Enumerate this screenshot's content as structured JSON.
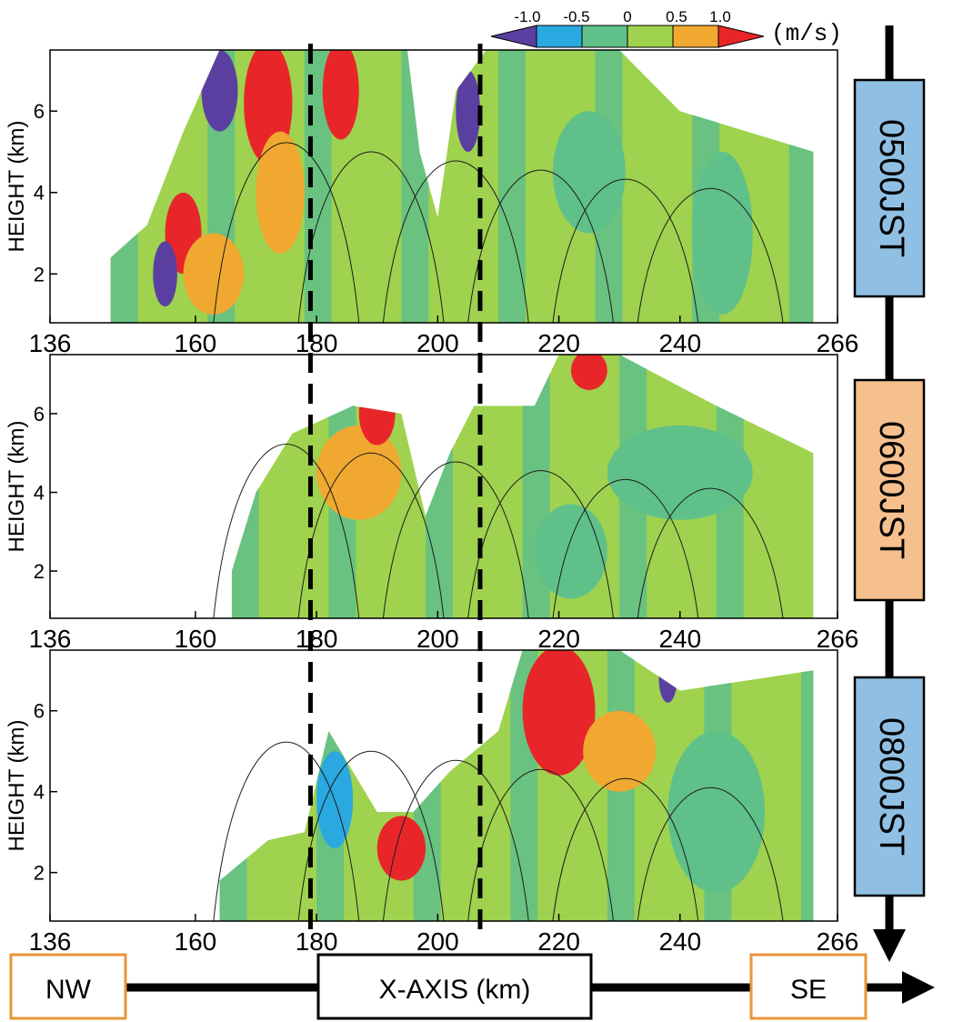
{
  "colorbar": {
    "tick_labels": [
      "-1.0",
      "-0.5",
      "0",
      "0.5",
      "1.0"
    ],
    "unit": "(m/s)",
    "colors": [
      "#5b3fa0",
      "#2aa8e0",
      "#5fc08a",
      "#9fd24e",
      "#f0a830",
      "#e8262a"
    ]
  },
  "panels": [
    {
      "time_label": "0500JST",
      "label_fill": "#8fc0e4",
      "y_axis_label": "HEIGHT (km)"
    },
    {
      "time_label": "0600JST",
      "label_fill": "#f5c08e",
      "y_axis_label": "HEIGHT (km)"
    },
    {
      "time_label": "0800JST",
      "label_fill": "#8fc0e4",
      "y_axis_label": "HEIGHT (km)"
    }
  ],
  "bottom_axis": {
    "left_label": "NW",
    "center_label": "X-AXIS (km)",
    "right_label": "SE"
  },
  "chart_data": {
    "type": "heatmap",
    "x_ticks": [
      136,
      160,
      180,
      200,
      220,
      240,
      266
    ],
    "y_ticks": [
      2,
      4,
      6
    ],
    "xlim": [
      136,
      266
    ],
    "ylim": [
      0.8,
      7.5
    ],
    "xlabel": "X-AXIS (km)",
    "ylabel": "HEIGHT (km)",
    "dashed_lines_x": [
      179,
      207
    ],
    "value_range": [
      -1.0,
      1.0
    ],
    "value_unit": "m/s",
    "panels": [
      {
        "time": "0500JST",
        "coverage_x": [
          146,
          262
        ],
        "echo_tops": [
          [
            146,
            2.4
          ],
          [
            152,
            3.2
          ],
          [
            158,
            5.5
          ],
          [
            164,
            7.5
          ],
          [
            195,
            7.5
          ],
          [
            197,
            5.0
          ],
          [
            200,
            3.4
          ],
          [
            203,
            6.5
          ],
          [
            208,
            7.5
          ],
          [
            230,
            7.5
          ],
          [
            240,
            6.0
          ],
          [
            262,
            5.0
          ]
        ],
        "patches": [
          {
            "x": 172,
            "z": 6.2,
            "rx": 4,
            "rz": 1.5,
            "value": 1.0
          },
          {
            "x": 184,
            "z": 6.5,
            "rx": 3,
            "rz": 1.2,
            "value": 1.0
          },
          {
            "x": 158,
            "z": 3.0,
            "rx": 3,
            "rz": 1.0,
            "value": 1.0
          },
          {
            "x": 174,
            "z": 4.0,
            "rx": 4,
            "rz": 1.5,
            "value": 0.7
          },
          {
            "x": 163,
            "z": 2.0,
            "rx": 5,
            "rz": 1.0,
            "value": 0.7
          },
          {
            "x": 155,
            "z": 2.0,
            "rx": 2,
            "rz": 0.8,
            "value": -1.0
          },
          {
            "x": 164,
            "z": 6.5,
            "rx": 3,
            "rz": 1.0,
            "value": -1.0
          },
          {
            "x": 205,
            "z": 6.0,
            "rx": 2,
            "rz": 1.0,
            "value": -1.0
          },
          {
            "x": 225,
            "z": 4.5,
            "rx": 6,
            "rz": 1.5,
            "value": -0.2
          },
          {
            "x": 247,
            "z": 3.0,
            "rx": 5,
            "rz": 2.0,
            "value": -0.2
          }
        ]
      },
      {
        "time": "0600JST",
        "coverage_x": [
          166,
          262
        ],
        "echo_tops": [
          [
            166,
            2.0
          ],
          [
            170,
            4.0
          ],
          [
            176,
            5.5
          ],
          [
            186,
            6.2
          ],
          [
            194,
            6.0
          ],
          [
            198,
            3.4
          ],
          [
            202,
            5.0
          ],
          [
            206,
            6.2
          ],
          [
            216,
            6.2
          ],
          [
            220,
            7.5
          ],
          [
            230,
            7.5
          ],
          [
            246,
            6.2
          ],
          [
            262,
            5.0
          ]
        ],
        "patches": [
          {
            "x": 187,
            "z": 4.5,
            "rx": 7,
            "rz": 1.2,
            "value": 0.7
          },
          {
            "x": 190,
            "z": 6.0,
            "rx": 3,
            "rz": 0.8,
            "value": 1.0
          },
          {
            "x": 225,
            "z": 7.1,
            "rx": 3,
            "rz": 0.5,
            "value": 1.0
          },
          {
            "x": 240,
            "z": 4.5,
            "rx": 12,
            "rz": 1.2,
            "value": -0.2
          },
          {
            "x": 222,
            "z": 2.5,
            "rx": 6,
            "rz": 1.2,
            "value": -0.2
          }
        ]
      },
      {
        "time": "0800JST",
        "coverage_x": [
          164,
          262
        ],
        "echo_tops": [
          [
            164,
            1.8
          ],
          [
            172,
            2.8
          ],
          [
            178,
            3.0
          ],
          [
            182,
            5.5
          ],
          [
            186,
            4.5
          ],
          [
            190,
            3.5
          ],
          [
            196,
            3.5
          ],
          [
            202,
            4.5
          ],
          [
            210,
            5.5
          ],
          [
            214,
            7.5
          ],
          [
            230,
            7.5
          ],
          [
            240,
            6.5
          ],
          [
            262,
            7.0
          ]
        ],
        "patches": [
          {
            "x": 194,
            "z": 2.6,
            "rx": 4,
            "rz": 0.8,
            "value": 1.0
          },
          {
            "x": 220,
            "z": 6.0,
            "rx": 6,
            "rz": 1.6,
            "value": 1.0
          },
          {
            "x": 183,
            "z": 3.8,
            "rx": 3,
            "rz": 1.2,
            "value": -0.6
          },
          {
            "x": 238,
            "z": 6.8,
            "rx": 1.5,
            "rz": 0.6,
            "value": -1.0
          },
          {
            "x": 230,
            "z": 5.0,
            "rx": 6,
            "rz": 1.0,
            "value": 0.7
          },
          {
            "x": 246,
            "z": 3.5,
            "rx": 8,
            "rz": 2.0,
            "value": -0.2
          }
        ]
      }
    ]
  }
}
